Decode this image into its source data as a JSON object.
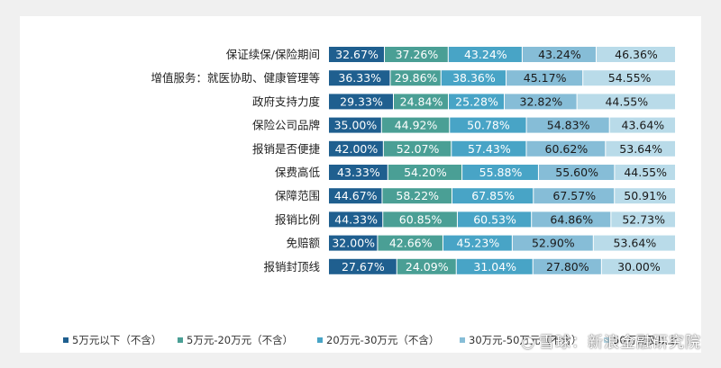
{
  "chart_data": {
    "type": "bar",
    "stacked": true,
    "orientation": "horizontal",
    "categories": [
      "保证续保/保险期间",
      "增值服务：就医协助、健康管理等",
      "政府支持力度",
      "保险公司品牌",
      "报销是否便捷",
      "保费高低",
      "保障范围",
      "报销比例",
      "免赔额",
      "报销封顶线"
    ],
    "series": [
      {
        "name": "5万元以下（不含）",
        "color": "#1f5f8f",
        "values": [
          32.67,
          36.33,
          29.33,
          35.0,
          42.0,
          43.33,
          44.67,
          44.33,
          32.0,
          27.67
        ]
      },
      {
        "name": "5万元-20万元（不含）",
        "color": "#4a9f95",
        "values": [
          37.26,
          29.86,
          24.84,
          44.92,
          52.07,
          54.2,
          58.22,
          60.85,
          42.66,
          24.09
        ]
      },
      {
        "name": "20万元-30万元（不含）",
        "color": "#48a4c6",
        "values": [
          43.24,
          38.36,
          25.28,
          50.78,
          57.43,
          55.88,
          67.85,
          60.53,
          45.23,
          31.04
        ]
      },
      {
        "name": "30万元-50万元（不含）",
        "color": "#86bdd7",
        "values": [
          43.24,
          45.17,
          32.82,
          54.83,
          60.62,
          55.6,
          67.57,
          64.86,
          52.9,
          27.8
        ]
      },
      {
        "name": "50万元及以上",
        "color": "#b9dbe9",
        "values": [
          46.36,
          54.55,
          44.55,
          43.64,
          53.64,
          44.55,
          50.91,
          52.73,
          53.64,
          30.0
        ]
      }
    ],
    "value_suffix": "%"
  },
  "watermark": {
    "text": "雪球：新浪金融研究院"
  }
}
